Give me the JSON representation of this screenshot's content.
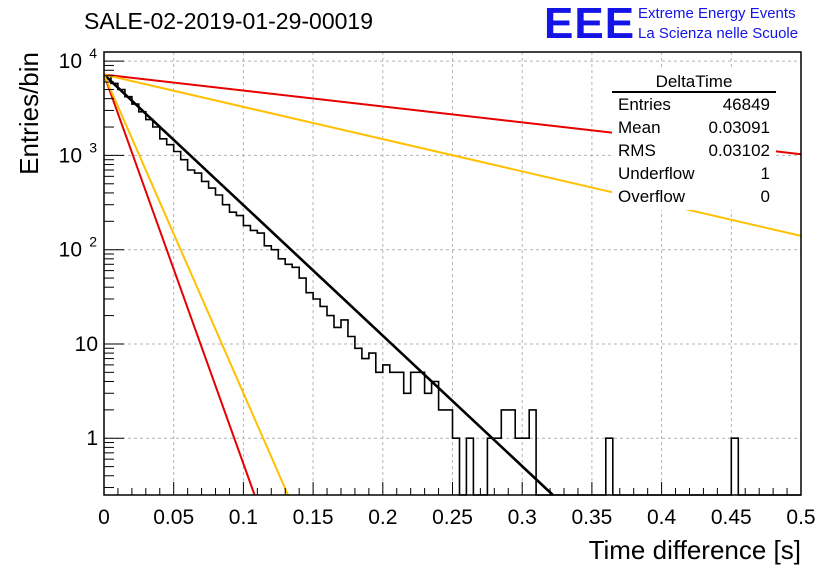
{
  "page": {
    "title": "SALE-02-2019-01-29-00019"
  },
  "logo": {
    "mark": "EEE",
    "line1": "Extreme Energy Events",
    "line2": "La Scienza nelle Scuole",
    "color": "#1414e6"
  },
  "stats_box": {
    "title": "DeltaTime",
    "rows": [
      {
        "label": "Entries",
        "value": "46849"
      },
      {
        "label": "Mean",
        "value": "0.03091"
      },
      {
        "label": "RMS",
        "value": "0.03102"
      },
      {
        "label": "Underflow",
        "value": "1"
      },
      {
        "label": "Overflow",
        "value": "0"
      }
    ]
  },
  "chart_data": {
    "type": "line",
    "xlabel": "Time difference [s]",
    "ylabel": "Entries/bin",
    "xlim": [
      0,
      0.5
    ],
    "ylim": [
      0.25,
      12500
    ],
    "y_scale": "log",
    "grid": true,
    "x_ticks": [
      "0",
      "0.05",
      "0.1",
      "0.15",
      "0.2",
      "0.25",
      "0.3",
      "0.35",
      "0.4",
      "0.45",
      "0.5"
    ],
    "y_ticks": [
      {
        "value": 10000,
        "base": "10",
        "exp": "4"
      },
      {
        "value": 1000,
        "base": "10",
        "exp": "3"
      },
      {
        "value": 100,
        "base": "10",
        "exp": "2"
      },
      {
        "value": 10,
        "base": "10",
        "exp": ""
      },
      {
        "value": 1,
        "base": "1",
        "exp": ""
      }
    ],
    "histogram": {
      "color": "#000000",
      "bin_width": 0.005,
      "x": [
        0,
        0.005,
        0.01,
        0.015,
        0.02,
        0.025,
        0.03,
        0.035,
        0.04,
        0.045,
        0.05,
        0.055,
        0.06,
        0.065,
        0.07,
        0.075,
        0.08,
        0.085,
        0.09,
        0.095,
        0.1,
        0.105,
        0.11,
        0.115,
        0.12,
        0.125,
        0.13,
        0.135,
        0.14,
        0.145,
        0.15,
        0.155,
        0.16,
        0.165,
        0.17,
        0.175,
        0.18,
        0.185,
        0.19,
        0.195,
        0.2,
        0.205,
        0.21,
        0.215,
        0.22,
        0.225,
        0.23,
        0.235,
        0.24,
        0.245,
        0.25,
        0.255,
        0.26,
        0.265,
        0.27,
        0.275,
        0.28,
        0.285,
        0.29,
        0.295,
        0.3,
        0.305,
        0.31,
        0.315,
        0.32,
        0.325,
        0.33,
        0.335,
        0.34,
        0.345,
        0.35,
        0.355,
        0.36,
        0.365,
        0.37,
        0.375,
        0.38,
        0.385,
        0.39,
        0.395,
        0.4,
        0.405,
        0.41,
        0.415,
        0.42,
        0.425,
        0.43,
        0.435,
        0.44,
        0.445,
        0.45,
        0.455,
        0.46,
        0.465,
        0.47,
        0.475,
        0.48,
        0.485,
        0.49,
        0.495
      ],
      "values": [
        7000,
        5800,
        5000,
        4200,
        3500,
        2900,
        2400,
        2000,
        1500,
        1300,
        1100,
        900,
        700,
        650,
        530,
        450,
        380,
        300,
        250,
        230,
        180,
        160,
        150,
        110,
        100,
        80,
        70,
        65,
        50,
        35,
        30,
        25,
        20,
        15,
        18,
        12,
        9,
        7,
        8,
        5,
        6,
        5,
        5,
        3,
        5,
        5,
        3,
        4,
        2,
        2,
        1,
        0,
        1,
        0,
        0,
        1,
        1,
        2,
        2,
        1,
        1,
        2,
        0,
        0,
        0,
        0,
        0,
        0,
        0,
        0,
        0,
        0,
        1,
        0,
        0,
        0,
        0,
        0,
        0,
        0,
        0,
        0,
        0,
        0,
        0,
        0,
        0,
        0,
        0,
        0,
        1,
        0,
        0,
        0,
        0,
        0,
        0,
        0,
        0,
        0
      ]
    },
    "series": [
      {
        "color": "#000000",
        "x": [
          0,
          0.322
        ],
        "values": [
          7200,
          0.25
        ]
      },
      {
        "color": "#e60000",
        "x": [
          0,
          0.5
        ],
        "values": [
          7200,
          1030
        ]
      },
      {
        "color": "#ffc000",
        "x": [
          0,
          0.5
        ],
        "values": [
          7200,
          140
        ]
      },
      {
        "color": "#e60000",
        "x": [
          0,
          0.108
        ],
        "values": [
          7200,
          0.25
        ]
      },
      {
        "color": "#ffc000",
        "x": [
          0,
          0.132
        ],
        "values": [
          7200,
          0.25
        ]
      }
    ]
  }
}
